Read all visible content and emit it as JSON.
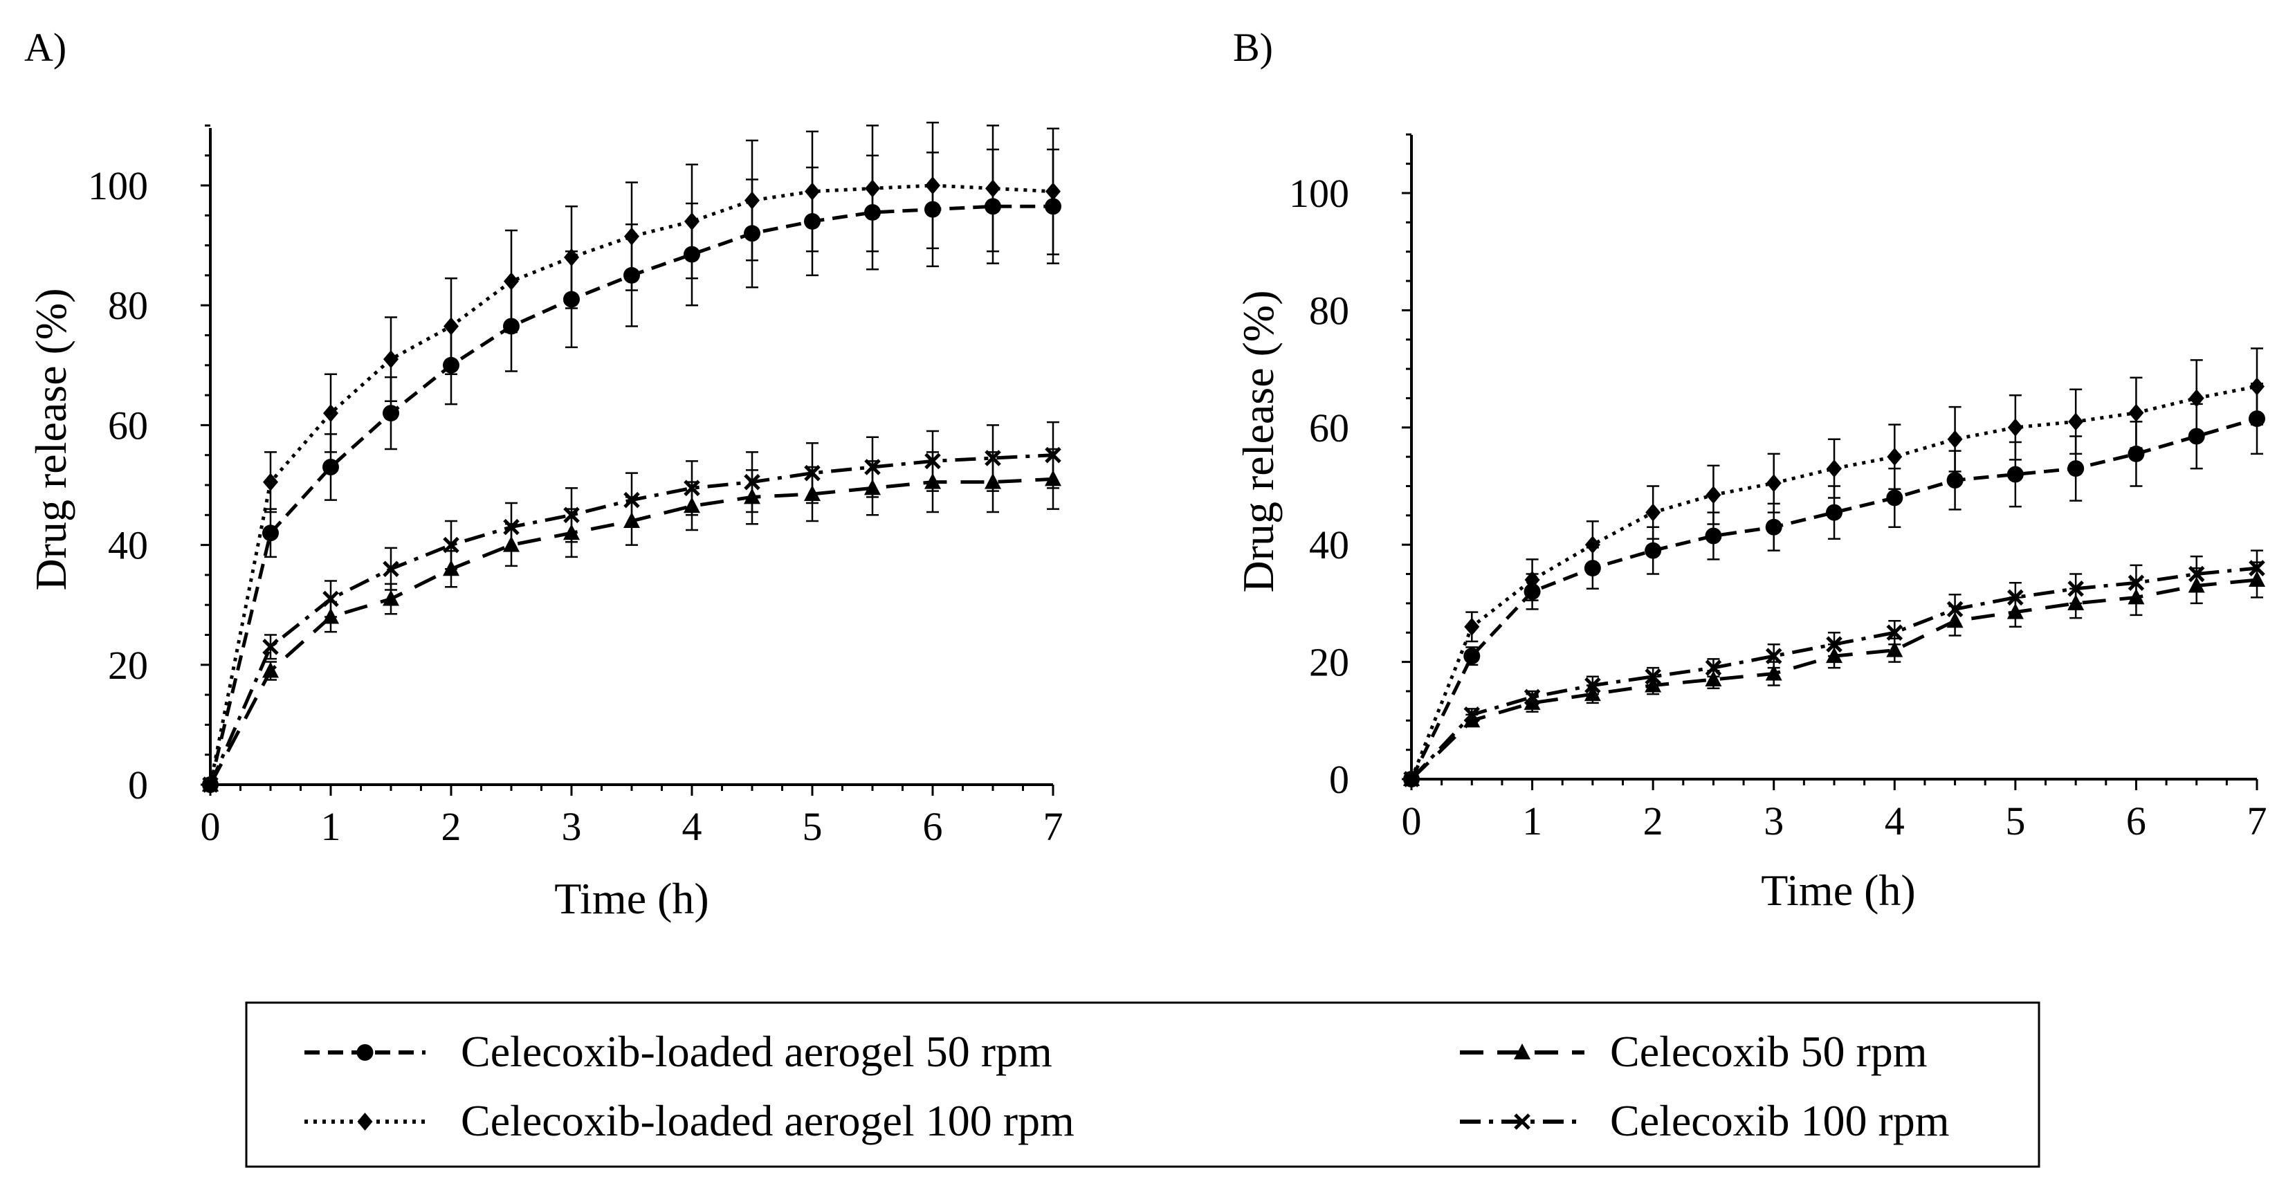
{
  "chart_data": [
    {
      "type": "line",
      "panel": "A)",
      "xlabel": "Time (h)",
      "ylabel": "Drug release (%)",
      "xlim": [
        0,
        7
      ],
      "ylim": [
        0,
        110
      ],
      "x_ticks": [
        "0",
        "1",
        "2",
        "3",
        "4",
        "5",
        "6",
        "7"
      ],
      "y_ticks": [
        "0",
        "20",
        "40",
        "60",
        "80",
        "100"
      ],
      "x": [
        0,
        0.5,
        1,
        1.5,
        2,
        2.5,
        3,
        3.5,
        4,
        4.5,
        5,
        5.5,
        6,
        6.5,
        7
      ],
      "series": [
        {
          "key": "aerogel-50",
          "name": "Celecoxib-loaded aerogel 50 rpm",
          "values": [
            0,
            42,
            53,
            62,
            70,
            76.5,
            81,
            85,
            88.5,
            92,
            94,
            95.5,
            96,
            96.5,
            96.5
          ],
          "errors": [
            0,
            4,
            5.5,
            6,
            6.5,
            7.5,
            8,
            8.5,
            8.5,
            9,
            9,
            9.5,
            9.5,
            9.5,
            9.5
          ]
        },
        {
          "key": "aerogel-100",
          "name": "Celecoxib-loaded aerogel 100 rpm",
          "values": [
            0,
            50.5,
            62,
            71,
            76.5,
            84,
            88,
            91.5,
            94,
            97.5,
            99,
            99.5,
            100,
            99.5,
            99
          ],
          "errors": [
            0,
            5,
            6.5,
            7,
            8,
            8.5,
            8.5,
            9,
            9.5,
            10,
            10,
            10.5,
            10.5,
            10.5,
            10.5
          ]
        },
        {
          "key": "celecoxib-50",
          "name": "Celecoxib 50 rpm",
          "values": [
            0,
            19,
            28,
            31,
            36,
            40,
            42,
            44,
            46.5,
            48,
            48.5,
            49.5,
            50.5,
            50.5,
            51
          ],
          "errors": [
            0,
            1.5,
            2.5,
            2.5,
            3,
            3.5,
            4,
            4,
            4,
            4.5,
            4.5,
            4.5,
            5,
            5,
            5
          ]
        },
        {
          "key": "celecoxib-100",
          "name": "Celecoxib 100 rpm",
          "values": [
            0,
            23,
            31,
            36,
            40,
            43,
            45,
            47.5,
            49.5,
            50.5,
            52,
            53,
            54,
            54.5,
            55
          ],
          "errors": [
            0,
            2,
            3,
            3.5,
            4,
            4,
            4.5,
            4.5,
            4.5,
            5,
            5,
            5,
            5,
            5.5,
            5.5
          ]
        }
      ]
    },
    {
      "type": "line",
      "panel": "B)",
      "xlabel": "Time (h)",
      "ylabel": "Drug release (%)",
      "xlim": [
        0,
        7
      ],
      "ylim": [
        0,
        110
      ],
      "x_ticks": [
        "0",
        "1",
        "2",
        "3",
        "4",
        "5",
        "6",
        "7"
      ],
      "y_ticks": [
        "0",
        "20",
        "40",
        "60",
        "80",
        "100"
      ],
      "x": [
        0,
        0.5,
        1,
        1.5,
        2,
        2.5,
        3,
        3.5,
        4,
        4.5,
        5,
        5.5,
        6,
        6.5,
        7
      ],
      "series": [
        {
          "key": "aerogel-50",
          "name": "Celecoxib-loaded aerogel 50 rpm",
          "values": [
            0,
            21,
            32,
            36,
            39,
            41.5,
            43,
            45.5,
            48,
            51,
            52,
            53,
            55.5,
            58.5,
            61.5
          ],
          "errors": [
            0,
            1.5,
            3,
            3.5,
            4,
            4,
            4,
            4.5,
            5,
            5,
            5.5,
            5.5,
            5.5,
            5.5,
            6
          ]
        },
        {
          "key": "aerogel-100",
          "name": "Celecoxib-loaded aerogel 100 rpm",
          "values": [
            0,
            26,
            34,
            40,
            45.5,
            48.5,
            50.5,
            53,
            55,
            58,
            60,
            61,
            62.5,
            65,
            67
          ],
          "errors": [
            0,
            2.5,
            3.5,
            4,
            4.5,
            5,
            5,
            5,
            5.5,
            5.5,
            5.5,
            5.5,
            6,
            6.5,
            6.5
          ]
        },
        {
          "key": "celecoxib-50",
          "name": "Celecoxib 50 rpm",
          "values": [
            0,
            10,
            13,
            14.5,
            16,
            17,
            18,
            21,
            22,
            27,
            28.5,
            30,
            31,
            33,
            34
          ],
          "errors": [
            0,
            1,
            1.5,
            1.5,
            1.5,
            1.5,
            2,
            2,
            2,
            2.5,
            2.5,
            2.5,
            3,
            3,
            3
          ]
        },
        {
          "key": "celecoxib-100",
          "name": "Celecoxib 100 rpm",
          "values": [
            0,
            11,
            14,
            16,
            17.5,
            19,
            21,
            23,
            25,
            29,
            31,
            32.5,
            33.5,
            35,
            36
          ],
          "errors": [
            0,
            1,
            1,
            1.5,
            1.5,
            1.5,
            2,
            2,
            2,
            2.5,
            2.5,
            2.5,
            3,
            3,
            3
          ]
        }
      ]
    }
  ],
  "legend": {
    "items": [
      {
        "key": "aerogel-50",
        "label": "Celecoxib-loaded aerogel 50 rpm"
      },
      {
        "key": "aerogel-100",
        "label": "Celecoxib-loaded aerogel 100 rpm"
      },
      {
        "key": "celecoxib-50",
        "label": "Celecoxib 50 rpm"
      },
      {
        "key": "celecoxib-100",
        "label": "Celecoxib 100 rpm"
      }
    ]
  },
  "series_styles": {
    "aerogel-50": {
      "marker": "circle",
      "line": "dashed",
      "color": "#000000"
    },
    "aerogel-100": {
      "marker": "diamond",
      "line": "dotted",
      "color": "#000000"
    },
    "celecoxib-50": {
      "marker": "triangle",
      "line": "long-dash",
      "color": "#000000"
    },
    "celecoxib-100": {
      "marker": "cross",
      "line": "dash-dot",
      "color": "#000000"
    }
  }
}
